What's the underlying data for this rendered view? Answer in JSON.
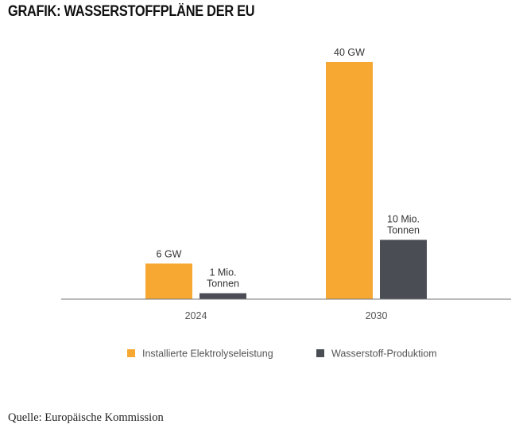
{
  "title": "GRAFIK: WASSERSTOFFPLÄNE DER EU",
  "source": "Quelle: Europäische Kommission",
  "chart_data": {
    "type": "bar",
    "categories": [
      "2024",
      "2030"
    ],
    "series": [
      {
        "name": "Installierte Elektrolyseleistung",
        "color": "#f7a833",
        "values": [
          6,
          40
        ],
        "labels": [
          [
            "6 GW"
          ],
          [
            "40 GW"
          ]
        ]
      },
      {
        "name": "Wasserstoff-Produktiom",
        "color": "#4a4e54",
        "values": [
          1,
          10
        ],
        "labels": [
          [
            "1 Mio.",
            "Tonnen"
          ],
          [
            "10 Mio.",
            "Tonnen"
          ]
        ]
      }
    ],
    "legend_position": "bottom",
    "grid": false
  }
}
